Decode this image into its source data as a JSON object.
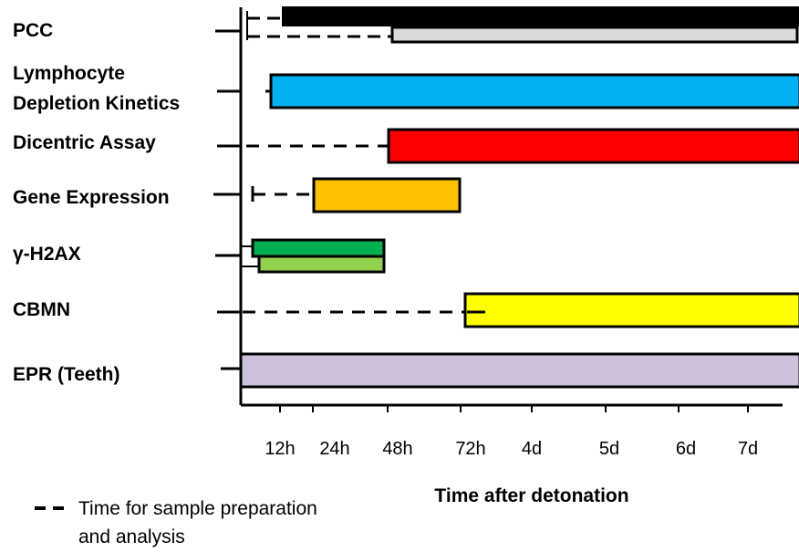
{
  "chart_data": {
    "type": "gantt",
    "xlabel": "Time after detonation",
    "x_ticks": [
      "12h",
      "24h",
      "48h",
      "72h",
      "4d",
      "5d",
      "6d",
      "7d"
    ],
    "assays": [
      {
        "label": "PCC",
        "bars": [
          {
            "prep_start": "6h",
            "start": "12h",
            "end": "7d+",
            "color": "#000000"
          },
          {
            "prep_start": "6h",
            "start": "48h",
            "end": "7d+",
            "color": "#d9d9d9"
          }
        ]
      },
      {
        "label": "Lymphocyte\nDepletion Kinetics",
        "bars": [
          {
            "prep_start": "10h",
            "start": "10h",
            "end": "7d+",
            "color": "#00b0f0"
          }
        ]
      },
      {
        "label": "Dicentric Assay",
        "bars": [
          {
            "prep_start": "0h",
            "start": "48h",
            "end": "7d+",
            "color": "#ff0000"
          }
        ]
      },
      {
        "label": "Gene Expression",
        "bars": [
          {
            "prep_start": "4h",
            "start": "24h",
            "end": "72h",
            "color": "#ffc000"
          }
        ]
      },
      {
        "label": "γ-H2AX",
        "bars": [
          {
            "prep_start": "4h",
            "start": "4h",
            "end": "48h",
            "color": "#00b050"
          },
          {
            "prep_start": "6h",
            "start": "6h",
            "end": "48h",
            "color": "#92d050"
          }
        ]
      },
      {
        "label": "CBMN",
        "bars": [
          {
            "prep_start": "0h",
            "start": "72h",
            "end": "7d+",
            "color": "#ffff00"
          }
        ]
      },
      {
        "label": "EPR (Teeth)",
        "bars": [
          {
            "prep_start": "0h",
            "start": "0h",
            "end": "7d+",
            "color": "#ccc0da"
          }
        ]
      }
    ],
    "legend": [
      {
        "symbol": "dash",
        "label": "Time for sample preparation\nand analysis"
      }
    ]
  }
}
